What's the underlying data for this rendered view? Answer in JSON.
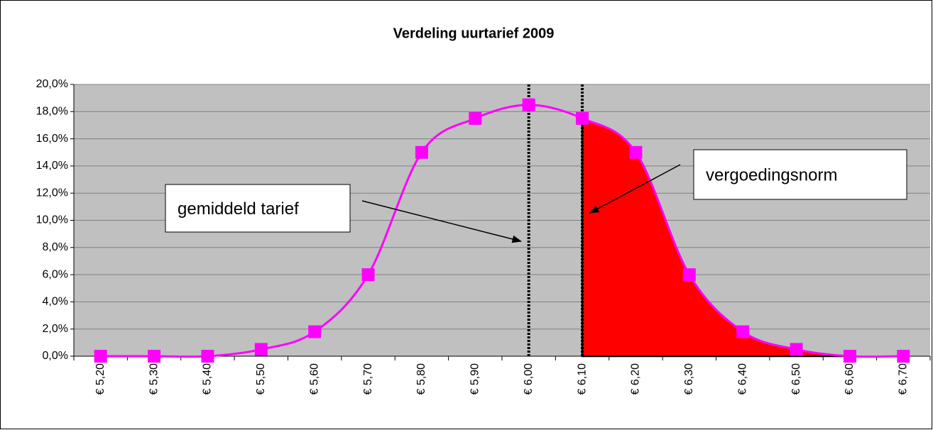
{
  "chart_data": {
    "type": "line",
    "title": "Verdeling uurtarief 2009",
    "categories": [
      "€ 5,20",
      "€ 5,30",
      "€ 5,40",
      "€ 5,50",
      "€ 5,60",
      "€ 5,70",
      "€ 5,80",
      "€ 5,90",
      "€ 6,00",
      "€ 6,10",
      "€ 6,20",
      "€ 6,30",
      "€ 6,40",
      "€ 6,50",
      "€ 6,60",
      "€ 6,70"
    ],
    "series": [
      {
        "color": "#ff00ff",
        "values": [
          0,
          0,
          0,
          0.5,
          1.8,
          6.0,
          15.0,
          17.5,
          18.5,
          17.5,
          15.0,
          6.0,
          1.8,
          0.5,
          0,
          0
        ]
      }
    ],
    "ylim": [
      0,
      20
    ],
    "yticks": [
      {
        "value": 0,
        "label": "0,0%"
      },
      {
        "value": 2,
        "label": "2,0%"
      },
      {
        "value": 4,
        "label": "4,0%"
      },
      {
        "value": 6,
        "label": "6,0%"
      },
      {
        "value": 8,
        "label": "8,0%"
      },
      {
        "value": 10,
        "label": "10,0%"
      },
      {
        "value": 12,
        "label": "12,0%"
      },
      {
        "value": 14,
        "label": "14,0%"
      },
      {
        "value": 16,
        "label": "16,0%"
      },
      {
        "value": 18,
        "label": "18,0%"
      },
      {
        "value": 20,
        "label": "20,0%"
      }
    ],
    "grid": true,
    "shaded_range": [
      "€ 6,10",
      "€ 6,60"
    ],
    "shaded_color": "#ff0000",
    "annotations": [
      {
        "text": "gemiddeld tarief",
        "at": "€ 6,00"
      },
      {
        "text": "vergoedingsnorm",
        "at": "€ 6,10"
      }
    ]
  }
}
